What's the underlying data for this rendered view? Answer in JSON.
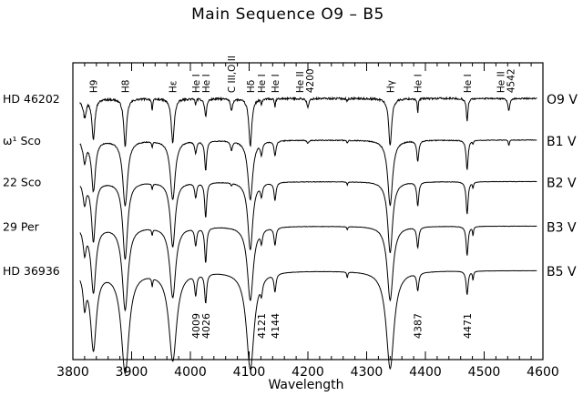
{
  "chart_data": {
    "type": "line",
    "title": "Main Sequence O9 – B5",
    "xlabel": "Wavelength",
    "ylabel": "",
    "xlim": [
      3800,
      4600
    ],
    "xticks": [
      3800,
      3900,
      4000,
      4100,
      4200,
      4300,
      4400,
      4500,
      4600
    ],
    "grid": false,
    "series": [
      {
        "name": "HD 46202",
        "class": "O9 V",
        "baseline": 0.88,
        "noise": 0.55,
        "sym": false
      },
      {
        "name": "ω¹ Sco",
        "class": "B1 V",
        "baseline": 0.74,
        "noise": 0.25,
        "sym": false
      },
      {
        "name": "22 Sco",
        "class": "B2 V",
        "baseline": 0.6,
        "noise": 0.15,
        "sym": false
      },
      {
        "name": "29 Per",
        "class": "B3 V",
        "baseline": 0.45,
        "noise": 0.12,
        "sym": false
      },
      {
        "name": "HD 36936",
        "class": "B5 V",
        "baseline": 0.3,
        "noise": 0.08,
        "sym": true
      }
    ],
    "lines": [
      {
        "wl": 3835,
        "label": "H9"
      },
      {
        "wl": 3889,
        "label": "H8"
      },
      {
        "wl": 3970,
        "label": "Hε"
      },
      {
        "wl": 4009,
        "label": "He I"
      },
      {
        "wl": 4026,
        "label": "He I"
      },
      {
        "wl": 4070,
        "label": "C III,O II"
      },
      {
        "wl": 4102,
        "label": "Hδ"
      },
      {
        "wl": 4121,
        "label": "He I"
      },
      {
        "wl": 4144,
        "label": "He I"
      },
      {
        "wl": 4200,
        "label": "He II 4200"
      },
      {
        "wl": 4340,
        "label": "Hγ"
      },
      {
        "wl": 4387,
        "label": "He I"
      },
      {
        "wl": 4471,
        "label": "He I"
      },
      {
        "wl": 4542,
        "label": "He II 4542"
      }
    ],
    "bottom_wavelength_labels": [
      {
        "wl": 4009,
        "text": "4009"
      },
      {
        "wl": 4026,
        "text": "4026"
      },
      {
        "wl": 4121,
        "text": "4121"
      },
      {
        "wl": 4144,
        "text": "4144"
      },
      {
        "wl": 4387,
        "text": "4387"
      },
      {
        "wl": 4471,
        "text": "4471"
      }
    ],
    "absorption": [
      {
        "wl": 3820,
        "depth": [
          0.06,
          0.07,
          0.07,
          0.08,
          0.1
        ],
        "width": [
          3,
          3,
          3,
          3,
          3
        ]
      },
      {
        "wl": 3835,
        "depth": [
          0.13,
          0.17,
          0.2,
          0.22,
          0.26
        ],
        "width": [
          3,
          4,
          4,
          5,
          6
        ]
      },
      {
        "wl": 3889,
        "depth": [
          0.16,
          0.22,
          0.26,
          0.28,
          0.34
        ],
        "width": [
          3,
          5,
          5,
          6,
          8
        ]
      },
      {
        "wl": 3935,
        "depth": [
          0.04,
          0.02,
          0.02,
          0.02,
          0.03
        ],
        "width": [
          1,
          1,
          1,
          1,
          1
        ]
      },
      {
        "wl": 3970,
        "depth": [
          0.15,
          0.2,
          0.22,
          0.24,
          0.3
        ],
        "width": [
          3,
          5,
          5,
          6,
          8
        ]
      },
      {
        "wl": 4009,
        "depth": [
          0.02,
          0.04,
          0.05,
          0.06,
          0.07
        ],
        "width": [
          1,
          2,
          2,
          2,
          2
        ]
      },
      {
        "wl": 4026,
        "depth": [
          0.06,
          0.1,
          0.12,
          0.12,
          0.1
        ],
        "width": [
          2,
          2,
          2,
          2,
          2
        ]
      },
      {
        "wl": 4070,
        "depth": [
          0.04,
          0.03,
          0.01,
          0.0,
          0.0
        ],
        "width": [
          2,
          2,
          1,
          1,
          1
        ]
      },
      {
        "wl": 4102,
        "depth": [
          0.16,
          0.2,
          0.23,
          0.25,
          0.33
        ],
        "width": [
          3,
          5,
          5,
          6,
          8
        ]
      },
      {
        "wl": 4121,
        "depth": [
          0.02,
          0.04,
          0.04,
          0.04,
          0.04
        ],
        "width": [
          1,
          2,
          2,
          2,
          2
        ]
      },
      {
        "wl": 4144,
        "depth": [
          0.03,
          0.05,
          0.06,
          0.06,
          0.06
        ],
        "width": [
          1,
          2,
          2,
          2,
          2
        ]
      },
      {
        "wl": 4200,
        "depth": [
          0.03,
          0.01,
          0.0,
          0.0,
          0.0
        ],
        "width": [
          2,
          2,
          1,
          1,
          1
        ]
      },
      {
        "wl": 4267,
        "depth": [
          0.01,
          0.01,
          0.01,
          0.01,
          0.02
        ],
        "width": [
          1,
          1,
          1,
          1,
          1
        ]
      },
      {
        "wl": 4340,
        "depth": [
          0.16,
          0.22,
          0.24,
          0.25,
          0.33
        ],
        "width": [
          3,
          5,
          5,
          6,
          8
        ]
      },
      {
        "wl": 4387,
        "depth": [
          0.05,
          0.07,
          0.08,
          0.07,
          0.06
        ],
        "width": [
          1,
          2,
          2,
          2,
          2
        ]
      },
      {
        "wl": 4471,
        "depth": [
          0.08,
          0.1,
          0.11,
          0.1,
          0.08
        ],
        "width": [
          1.5,
          2,
          2,
          2,
          2
        ]
      },
      {
        "wl": 4481,
        "depth": [
          0.0,
          0.01,
          0.02,
          0.03,
          0.03
        ],
        "width": [
          1,
          1,
          1,
          1,
          1
        ]
      },
      {
        "wl": 4542,
        "depth": [
          0.04,
          0.02,
          0.0,
          0.0,
          0.0
        ],
        "width": [
          2,
          1,
          1,
          1,
          1
        ]
      }
    ]
  }
}
